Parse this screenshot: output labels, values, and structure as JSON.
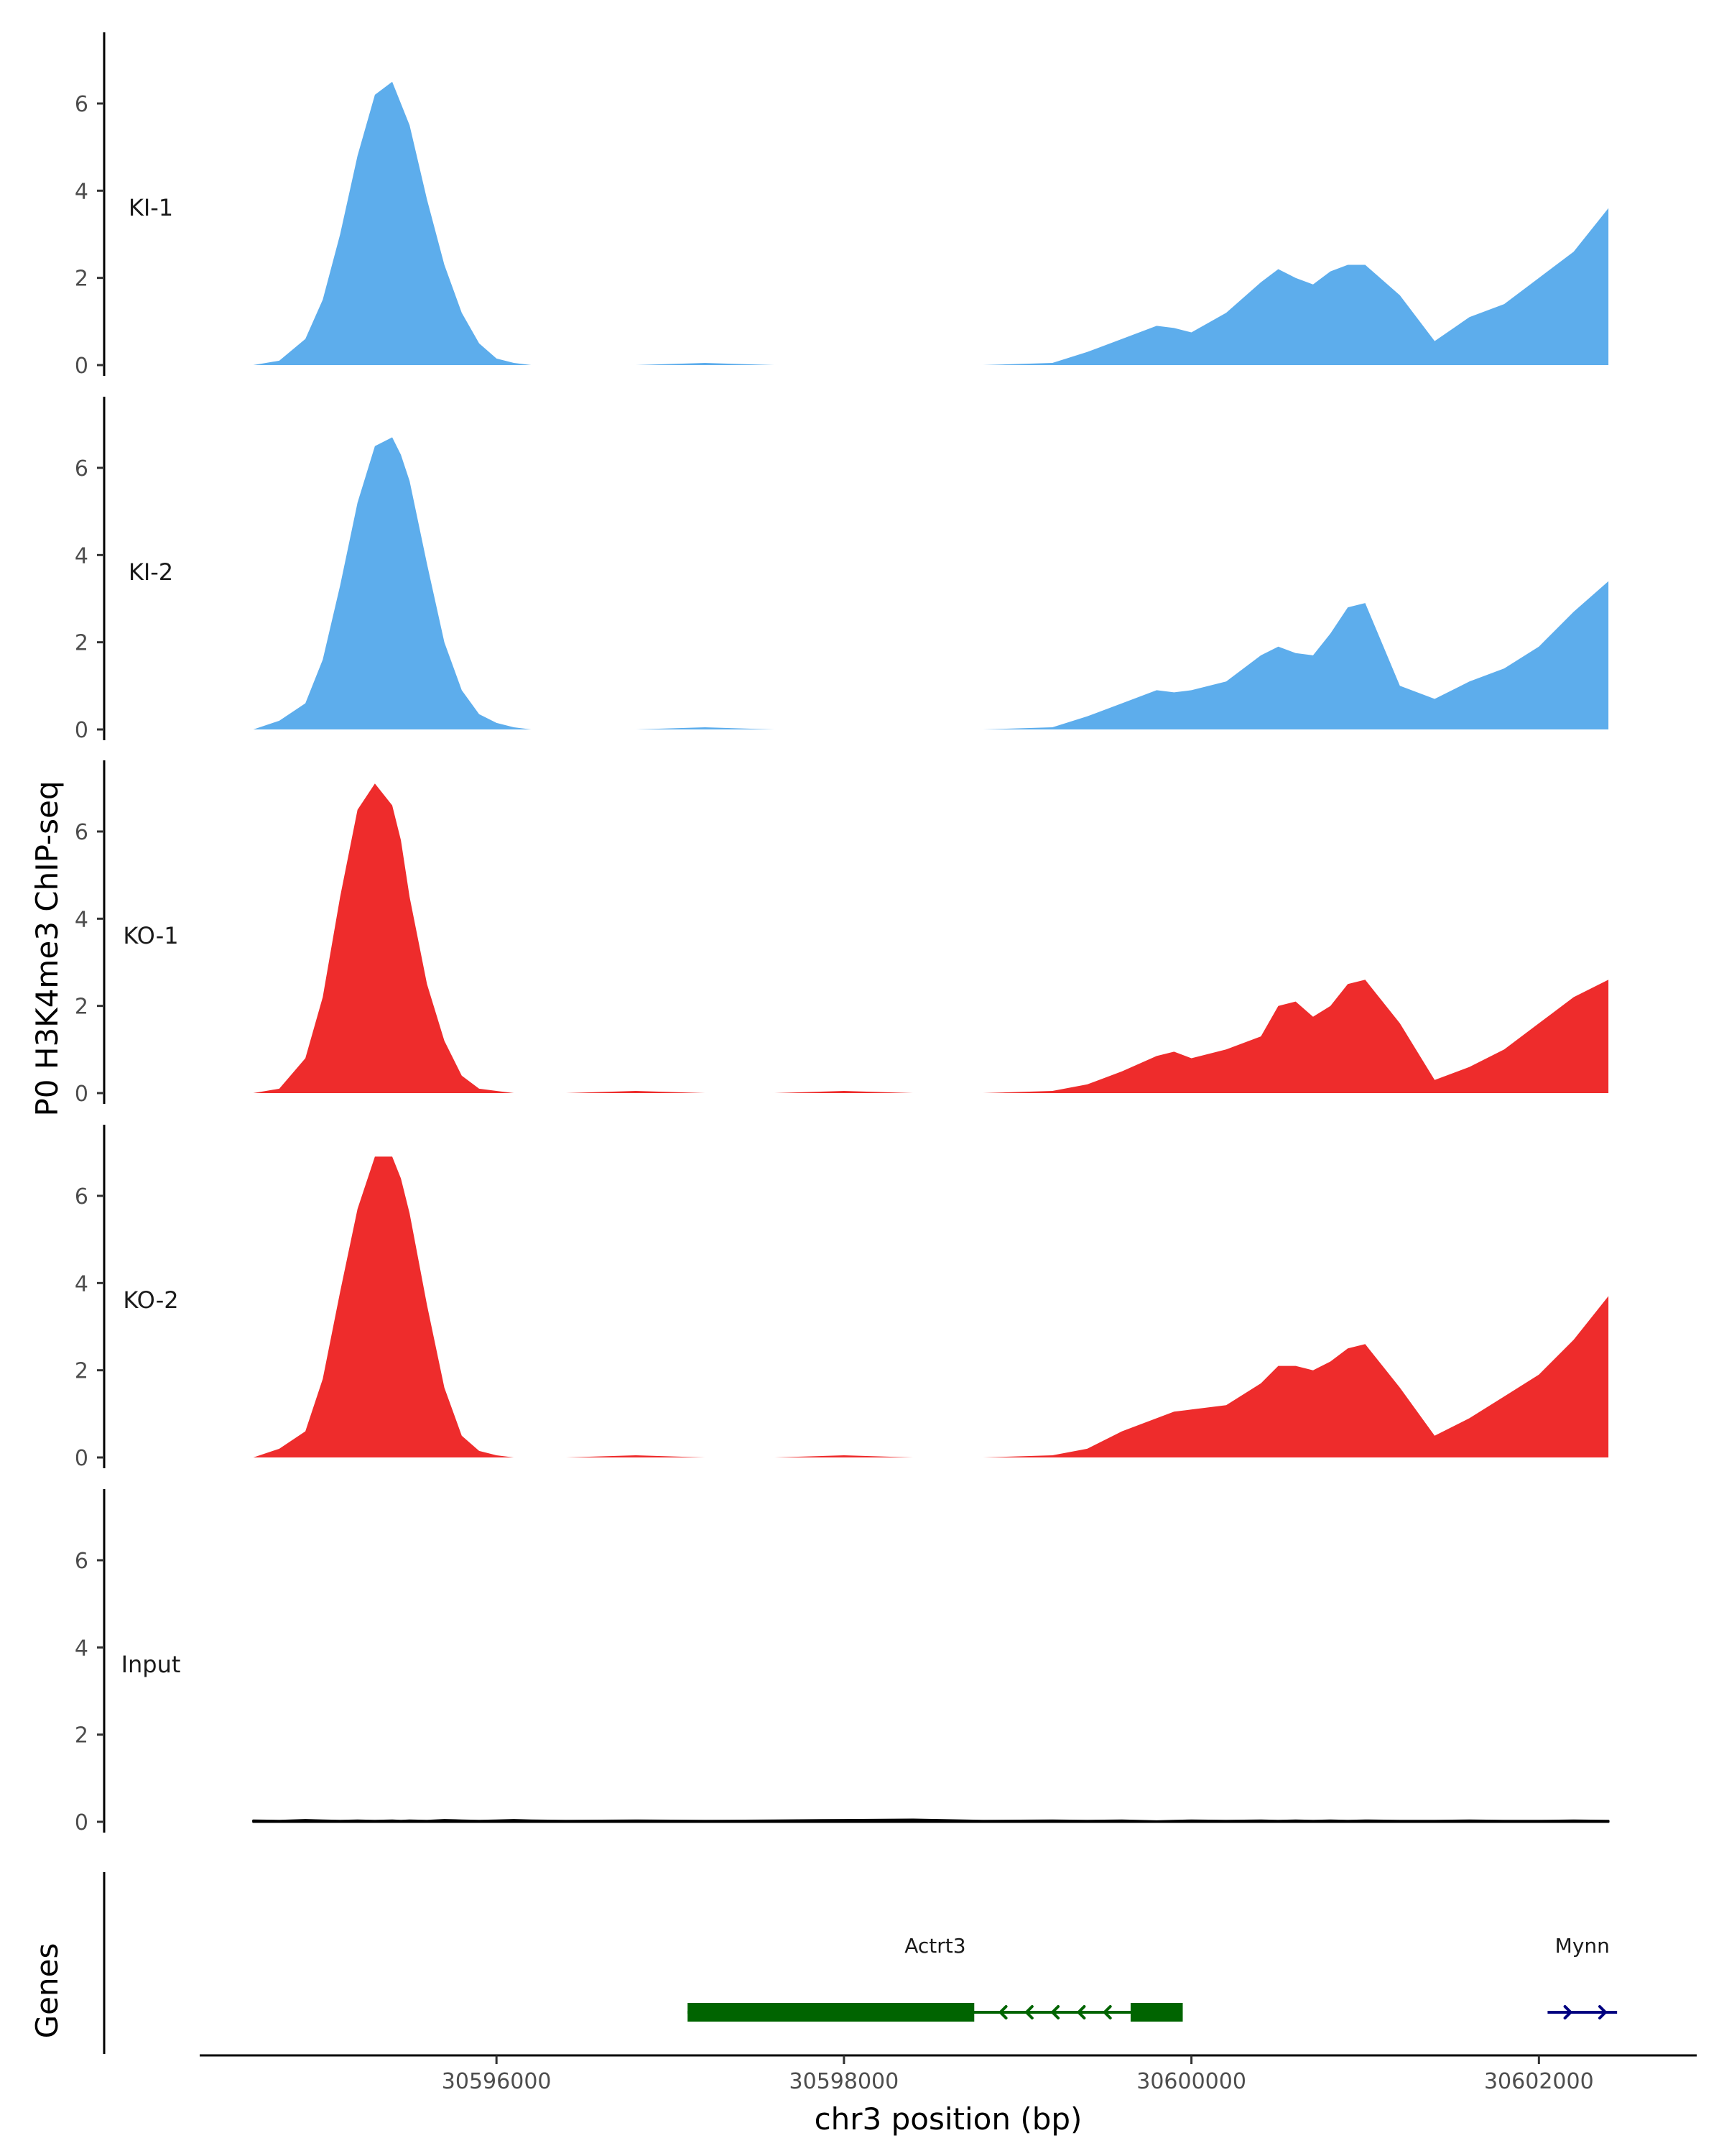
{
  "chart_data": {
    "type": "area",
    "title": "",
    "ylabel": "P0 H3K4me3 ChIP-seq",
    "xlabel": "chr3 position (bp)",
    "genes_label": "Genes",
    "ylim": [
      0,
      7.5
    ],
    "yticks": [
      0,
      2,
      4,
      6
    ],
    "xlim": [
      30594300,
      30602900
    ],
    "xticks": [
      30596000,
      30598000,
      30600000,
      30602000
    ],
    "xtick_labels": [
      "30596000",
      "30598000",
      "30600000",
      "30602000"
    ],
    "x": [
      30594600,
      30594750,
      30594900,
      30595000,
      30595100,
      30595200,
      30595300,
      30595400,
      30595450,
      30595500,
      30595600,
      30595700,
      30595800,
      30595900,
      30596000,
      30596100,
      30596200,
      30596400,
      30596800,
      30597200,
      30597600,
      30598000,
      30598400,
      30598800,
      30599200,
      30599400,
      30599600,
      30599800,
      30599900,
      30600000,
      30600200,
      30600400,
      30600500,
      30600600,
      30600700,
      30600800,
      30600900,
      30601000,
      30601200,
      30601400,
      30601600,
      30601800,
      30602000,
      30602200,
      30602400
    ],
    "series": [
      {
        "name": "KI-1",
        "color": "#5DADEC",
        "values": [
          0.0,
          0.1,
          0.6,
          1.5,
          3.0,
          4.8,
          6.2,
          6.5,
          6.0,
          5.5,
          3.8,
          2.3,
          1.2,
          0.5,
          0.15,
          0.05,
          0.0,
          0.0,
          0.0,
          0.05,
          0.0,
          0.0,
          0.0,
          0.0,
          0.05,
          0.3,
          0.6,
          0.9,
          0.85,
          0.75,
          1.2,
          1.9,
          2.2,
          2.0,
          1.85,
          2.15,
          2.3,
          2.3,
          1.6,
          0.55,
          1.1,
          1.4,
          2.0,
          2.6,
          3.6
        ]
      },
      {
        "name": "KI-2",
        "color": "#5DADEC",
        "values": [
          0.0,
          0.2,
          0.6,
          1.6,
          3.3,
          5.2,
          6.5,
          6.7,
          6.3,
          5.7,
          3.8,
          2.0,
          0.9,
          0.35,
          0.15,
          0.05,
          0.0,
          0.0,
          0.0,
          0.05,
          0.0,
          0.0,
          0.0,
          0.0,
          0.05,
          0.3,
          0.6,
          0.9,
          0.85,
          0.9,
          1.1,
          1.7,
          1.9,
          1.75,
          1.7,
          2.2,
          2.8,
          2.9,
          1.0,
          0.7,
          1.1,
          1.4,
          1.9,
          2.7,
          3.4
        ]
      },
      {
        "name": "KO-1",
        "color": "#EE2C2C",
        "values": [
          0.0,
          0.1,
          0.8,
          2.2,
          4.5,
          6.5,
          7.1,
          6.6,
          5.8,
          4.5,
          2.5,
          1.2,
          0.4,
          0.1,
          0.05,
          0.0,
          0.0,
          0.0,
          0.05,
          0.0,
          0.0,
          0.05,
          0.0,
          0.0,
          0.05,
          0.2,
          0.5,
          0.85,
          0.95,
          0.8,
          1.0,
          1.3,
          2.0,
          2.1,
          1.75,
          2.0,
          2.5,
          2.6,
          1.6,
          0.3,
          0.6,
          1.0,
          1.6,
          2.2,
          2.6
        ]
      },
      {
        "name": "KO-2",
        "color": "#EE2C2C",
        "values": [
          0.0,
          0.2,
          0.6,
          1.8,
          3.8,
          5.7,
          6.9,
          6.9,
          6.4,
          5.6,
          3.5,
          1.6,
          0.5,
          0.15,
          0.05,
          0.0,
          0.0,
          0.0,
          0.05,
          0.0,
          0.0,
          0.05,
          0.0,
          0.0,
          0.05,
          0.2,
          0.6,
          0.9,
          1.05,
          1.1,
          1.2,
          1.7,
          2.1,
          2.1,
          2.0,
          2.2,
          2.5,
          2.6,
          1.6,
          0.5,
          0.9,
          1.4,
          1.9,
          2.7,
          3.7
        ]
      },
      {
        "name": "Input",
        "color": "#000000",
        "values": [
          0.03,
          0.02,
          0.04,
          0.03,
          0.02,
          0.03,
          0.02,
          0.03,
          0.02,
          0.03,
          0.02,
          0.04,
          0.03,
          0.02,
          0.03,
          0.04,
          0.03,
          0.02,
          0.03,
          0.02,
          0.03,
          0.04,
          0.05,
          0.02,
          0.03,
          0.02,
          0.03,
          0.01,
          0.02,
          0.03,
          0.02,
          0.03,
          0.02,
          0.03,
          0.02,
          0.03,
          0.02,
          0.03,
          0.02,
          0.02,
          0.03,
          0.02,
          0.02,
          0.03,
          0.02
        ]
      }
    ],
    "genes": [
      {
        "name": "Actrt3",
        "strand": "-",
        "color": "#006400",
        "start": 30597100,
        "end": 30599950,
        "exons": [
          [
            30597100,
            30598750
          ],
          [
            30599650,
            30599950
          ]
        ]
      },
      {
        "name": "Mynn",
        "strand": "+",
        "color": "#000080",
        "start": 30602050,
        "end": 30602450,
        "exons": []
      }
    ]
  }
}
